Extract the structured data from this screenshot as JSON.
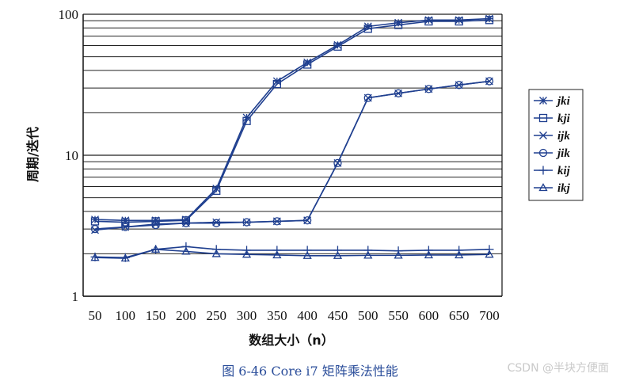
{
  "chart_data": {
    "type": "line",
    "y_scale": "log",
    "ylim": [
      1,
      100
    ],
    "ylabel": "周期/迭代",
    "xlabel": "数组大小（n）",
    "categories": [
      50,
      100,
      150,
      200,
      250,
      300,
      350,
      400,
      450,
      500,
      550,
      600,
      650,
      700
    ],
    "y_ticks": [
      "1",
      "10",
      "100"
    ],
    "grid": "horizontal",
    "legend_position": "right",
    "series": [
      {
        "name": "jki",
        "marker": "asterisk",
        "values": [
          3.5,
          3.45,
          3.45,
          3.5,
          5.8,
          18.5,
          33.5,
          45.5,
          60.5,
          82,
          87,
          91,
          91,
          93
        ]
      },
      {
        "name": "kji",
        "marker": "square",
        "values": [
          3.4,
          3.35,
          3.4,
          3.45,
          5.6,
          17.5,
          32,
          44,
          59,
          79,
          84,
          89,
          89,
          91
        ]
      },
      {
        "name": "ijk",
        "marker": "x",
        "values": [
          2.95,
          3.1,
          3.25,
          3.3,
          3.35,
          3.35,
          3.4,
          3.45,
          8.8,
          25.5,
          27.5,
          29.5,
          31.5,
          33.5
        ]
      },
      {
        "name": "jik",
        "marker": "circle",
        "values": [
          3.0,
          3.1,
          3.2,
          3.3,
          3.3,
          3.35,
          3.4,
          3.45,
          8.8,
          25.5,
          27.5,
          29.5,
          31.5,
          33.5
        ]
      },
      {
        "name": "kij",
        "marker": "plus",
        "values": [
          1.9,
          1.88,
          2.15,
          2.25,
          2.15,
          2.12,
          2.12,
          2.12,
          2.12,
          2.12,
          2.1,
          2.12,
          2.12,
          2.15
        ]
      },
      {
        "name": "ikj",
        "marker": "triangle",
        "values": [
          1.88,
          1.86,
          2.15,
          2.08,
          2.0,
          1.98,
          1.96,
          1.94,
          1.94,
          1.95,
          1.95,
          1.96,
          1.96,
          1.98
        ]
      }
    ],
    "caption": "图 6-46   Core i7 矩阵乘法性能"
  },
  "colors": {
    "series": "#1f3f8f",
    "grid": "#222222",
    "caption": "#2a4d9a"
  },
  "watermark": "CSDN @半块方便面"
}
